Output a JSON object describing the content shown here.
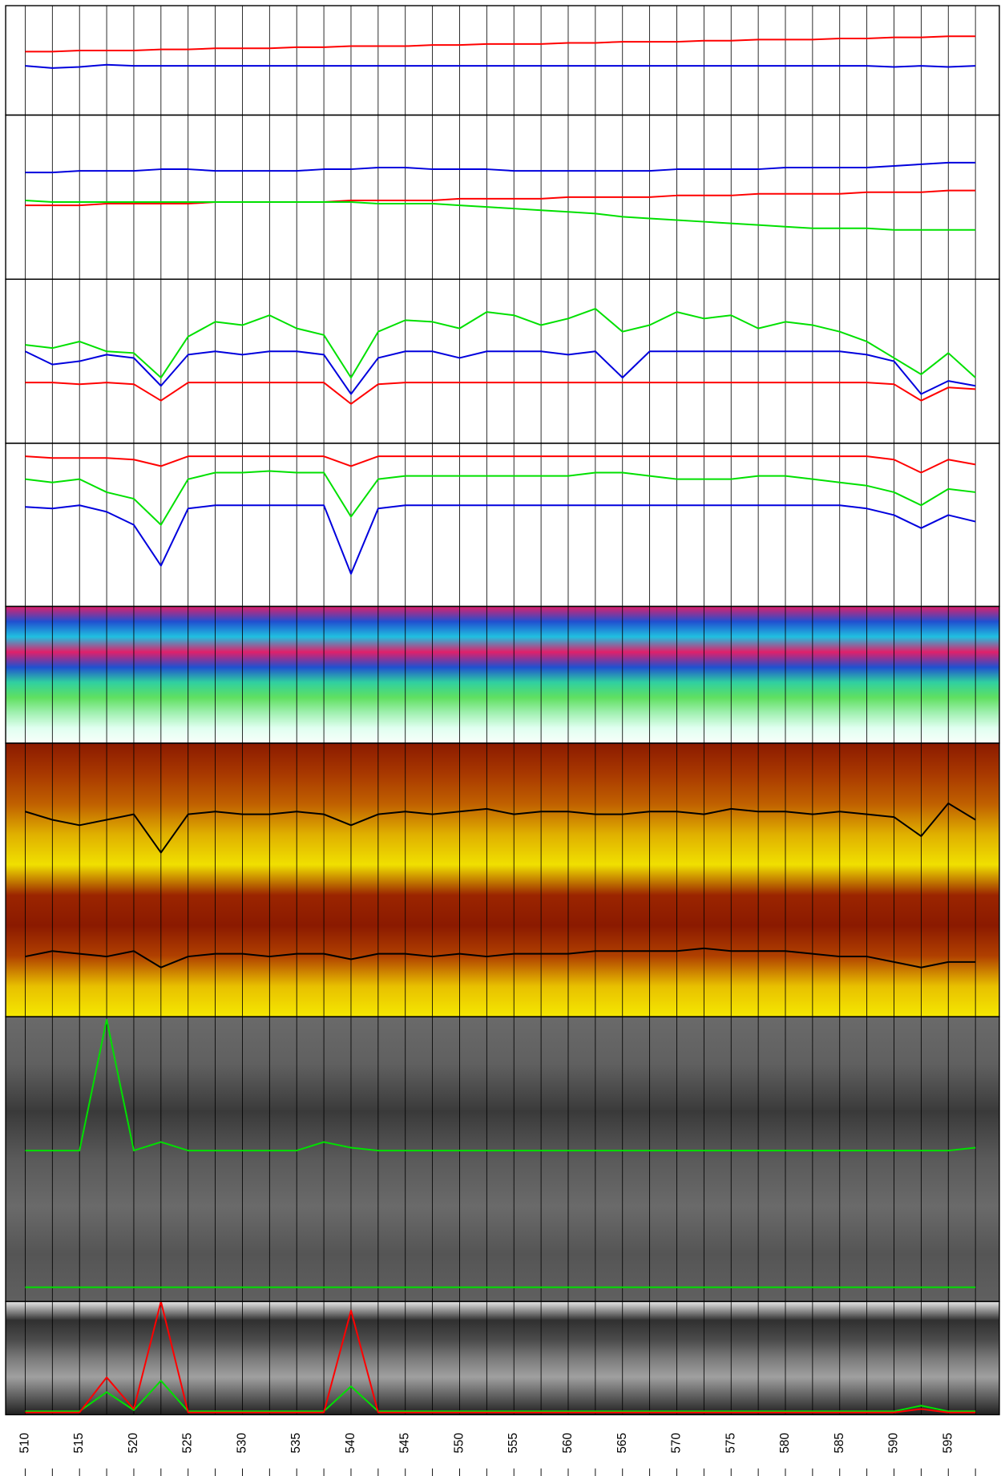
{
  "chart_data": {
    "type": "panels",
    "xlim": [
      508.2,
      599.7
    ],
    "xticks": [
      510,
      515,
      520,
      525,
      530,
      535,
      540,
      545,
      550,
      555,
      560,
      565,
      570,
      575,
      580,
      585,
      590,
      595
    ],
    "minor_xticks": [
      512.5,
      517.5,
      522.5,
      527.5,
      532.5,
      537.5,
      542.5,
      547.5,
      552.5,
      557.5,
      562.5,
      567.5,
      572.5,
      577.5,
      582.5,
      587.5,
      592.5,
      597.5
    ],
    "grid": true,
    "x": [
      510,
      512.5,
      515,
      517.5,
      520,
      522.5,
      525,
      527.5,
      530,
      532.5,
      535,
      537.5,
      540,
      542.5,
      545,
      547.5,
      550,
      552.5,
      555,
      557.5,
      560,
      562.5,
      565,
      567.5,
      570,
      572.5,
      575,
      577.5,
      580,
      582.5,
      585,
      587.5,
      590,
      592.5,
      595,
      597.5
    ],
    "panels": [
      {
        "type": "line",
        "ylim": [
          0,
          100
        ],
        "series": [
          {
            "color": "#ff0000",
            "values": [
              58,
              58,
              59,
              59,
              59,
              60,
              60,
              61,
              61,
              61,
              62,
              62,
              63,
              63,
              63,
              64,
              64,
              65,
              65,
              65,
              66,
              66,
              67,
              67,
              67,
              68,
              68,
              69,
              69,
              69,
              70,
              70,
              71,
              71,
              72,
              72
            ]
          },
          {
            "color": "#0000dd",
            "values": [
              45,
              43,
              44,
              46,
              45,
              45,
              45,
              45,
              45,
              45,
              45,
              45,
              45,
              45,
              45,
              45,
              45,
              45,
              45,
              45,
              45,
              45,
              45,
              45,
              45,
              45,
              45,
              45,
              45,
              45,
              45,
              45,
              44,
              45,
              44,
              45
            ]
          }
        ]
      },
      {
        "type": "line",
        "ylim": [
          0,
          100
        ],
        "series": [
          {
            "color": "#0000dd",
            "values": [
              65,
              65,
              66,
              66,
              66,
              67,
              67,
              66,
              66,
              66,
              66,
              67,
              67,
              68,
              68,
              67,
              67,
              67,
              66,
              66,
              66,
              66,
              66,
              66,
              67,
              67,
              67,
              67,
              68,
              68,
              68,
              68,
              69,
              70,
              71,
              71
            ]
          },
          {
            "color": "#ff0000",
            "values": [
              45,
              45,
              45,
              46,
              46,
              46,
              46,
              47,
              47,
              47,
              47,
              47,
              48,
              48,
              48,
              48,
              49,
              49,
              49,
              49,
              50,
              50,
              50,
              50,
              51,
              51,
              51,
              52,
              52,
              52,
              52,
              53,
              53,
              53,
              54,
              54
            ]
          },
          {
            "color": "#00e000",
            "values": [
              48,
              47,
              47,
              47,
              47,
              47,
              47,
              47,
              47,
              47,
              47,
              47,
              47,
              46,
              46,
              46,
              45,
              44,
              43,
              42,
              41,
              40,
              38,
              37,
              36,
              35,
              34,
              33,
              32,
              31,
              31,
              31,
              30,
              30,
              30,
              30
            ]
          }
        ]
      },
      {
        "type": "line",
        "ylim": [
          0,
          100
        ],
        "series": [
          {
            "color": "#00e000",
            "values": [
              60,
              58,
              62,
              56,
              55,
              40,
              65,
              74,
              72,
              78,
              70,
              66,
              40,
              68,
              75,
              74,
              70,
              80,
              78,
              72,
              76,
              82,
              68,
              72,
              80,
              76,
              78,
              70,
              74,
              72,
              68,
              62,
              52,
              42,
              55,
              40
            ]
          },
          {
            "color": "#0000dd",
            "values": [
              56,
              48,
              50,
              54,
              52,
              35,
              54,
              56,
              54,
              56,
              56,
              54,
              30,
              52,
              56,
              56,
              52,
              56,
              56,
              56,
              54,
              56,
              40,
              56,
              56,
              56,
              56,
              56,
              56,
              56,
              56,
              54,
              50,
              30,
              38,
              35
            ]
          },
          {
            "color": "#ff0000",
            "values": [
              37,
              37,
              36,
              37,
              36,
              26,
              37,
              37,
              37,
              37,
              37,
              37,
              24,
              36,
              37,
              37,
              37,
              37,
              37,
              37,
              37,
              37,
              37,
              37,
              37,
              37,
              37,
              37,
              37,
              37,
              37,
              37,
              36,
              26,
              34,
              33
            ]
          }
        ]
      },
      {
        "type": "line",
        "ylim": [
          0,
          100
        ],
        "series": [
          {
            "color": "#ff0000",
            "values": [
              92,
              91,
              91,
              91,
              90,
              86,
              92,
              92,
              92,
              92,
              92,
              92,
              86,
              92,
              92,
              92,
              92,
              92,
              92,
              92,
              92,
              92,
              92,
              92,
              92,
              92,
              92,
              92,
              92,
              92,
              92,
              92,
              90,
              82,
              90,
              87
            ]
          },
          {
            "color": "#00e000",
            "values": [
              78,
              76,
              78,
              70,
              66,
              50,
              78,
              82,
              82,
              83,
              82,
              82,
              55,
              78,
              80,
              80,
              80,
              80,
              80,
              80,
              80,
              82,
              82,
              80,
              78,
              78,
              78,
              80,
              80,
              78,
              76,
              74,
              70,
              62,
              72,
              70
            ]
          },
          {
            "color": "#0000dd",
            "values": [
              61,
              60,
              62,
              58,
              50,
              25,
              60,
              62,
              62,
              62,
              62,
              62,
              20,
              60,
              62,
              62,
              62,
              62,
              62,
              62,
              62,
              62,
              62,
              62,
              62,
              62,
              62,
              62,
              62,
              62,
              62,
              60,
              56,
              48,
              56,
              52
            ]
          }
        ]
      },
      {
        "type": "heatmap",
        "colors": [
          "#e0206a",
          "#2050d0",
          "#20c0e0",
          "#e0206a",
          "#2050d0",
          "#30d0a0",
          "#60e060",
          "#a0f0b0",
          "#e0fff0",
          "#f8fffa"
        ],
        "ylim": [
          0,
          100
        ],
        "series": []
      },
      {
        "type": "heatmap",
        "colors": [
          "#8b1a00",
          "#a83800",
          "#c06000",
          "#e0b000",
          "#f0e000",
          "#9b2500",
          "#8b1a00",
          "#b04000",
          "#e8c000",
          "#f5e800"
        ],
        "ylim": [
          0,
          100
        ],
        "series": [
          {
            "color": "#000000",
            "values": [
              75,
              72,
              70,
              72,
              74,
              60,
              74,
              75,
              74,
              74,
              75,
              74,
              70,
              74,
              75,
              74,
              75,
              76,
              74,
              75,
              75,
              74,
              74,
              75,
              75,
              74,
              76,
              75,
              75,
              74,
              75,
              74,
              73,
              66,
              78,
              72
            ]
          },
          {
            "color": "#000000",
            "values": [
              22,
              24,
              23,
              22,
              24,
              18,
              22,
              23,
              23,
              22,
              23,
              23,
              21,
              23,
              23,
              22,
              23,
              22,
              23,
              23,
              23,
              24,
              24,
              24,
              24,
              25,
              24,
              24,
              24,
              23,
              22,
              22,
              20,
              18,
              20,
              20
            ]
          }
        ]
      },
      {
        "type": "heatmap",
        "colors": [
          "#6a6a6a",
          "#606060",
          "#3a3a3a",
          "#5a5a5a",
          "#6a6a6a",
          "#555555",
          "#606060"
        ],
        "ylim": [
          0,
          100
        ],
        "series": [
          {
            "color": "#00e000",
            "values": [
              53,
              53,
              53,
              99,
              53,
              56,
              53,
              53,
              53,
              53,
              53,
              56,
              54,
              53,
              53,
              53,
              53,
              53,
              53,
              53,
              53,
              53,
              53,
              53,
              53,
              53,
              53,
              53,
              53,
              53,
              53,
              53,
              53,
              53,
              53,
              54
            ]
          },
          {
            "color": "#00e000",
            "values": [
              5,
              5,
              5,
              5,
              5,
              5,
              5,
              5,
              5,
              5,
              5,
              5,
              5,
              5,
              5,
              5,
              5,
              5,
              5,
              5,
              5,
              5,
              5,
              5,
              5,
              5,
              5,
              5,
              5,
              5,
              5,
              5,
              5,
              5,
              5,
              5
            ]
          }
        ]
      },
      {
        "type": "heatmap",
        "colors": [
          "#e8e8e8",
          "#303030",
          "#4a4a4a",
          "#7a7a7a",
          "#a0a0a0",
          "#606060",
          "#202020"
        ],
        "ylim": [
          0,
          100
        ],
        "series": [
          {
            "color": "#00e000",
            "values": [
              3,
              3,
              3,
              20,
              4,
              30,
              3,
              3,
              3,
              3,
              3,
              3,
              25,
              3,
              3,
              3,
              3,
              3,
              3,
              3,
              3,
              3,
              3,
              3,
              3,
              3,
              3,
              3,
              3,
              3,
              3,
              3,
              3,
              8,
              3,
              3
            ]
          },
          {
            "color": "#ff0000",
            "values": [
              2,
              2,
              2,
              33,
              5,
              100,
              2,
              2,
              2,
              2,
              2,
              2,
              92,
              2,
              2,
              2,
              2,
              2,
              2,
              2,
              2,
              2,
              2,
              2,
              2,
              2,
              2,
              2,
              2,
              2,
              2,
              2,
              2,
              5,
              2,
              2
            ]
          }
        ]
      }
    ]
  }
}
